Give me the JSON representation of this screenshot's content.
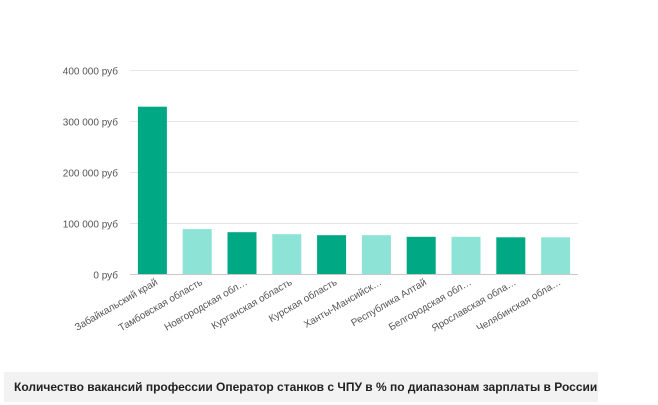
{
  "chart_data": {
    "type": "bar",
    "title": "",
    "xlabel": "",
    "ylabel": "",
    "ylim": [
      0,
      400000
    ],
    "y_ticks": [
      {
        "value": 0,
        "label": "0 руб"
      },
      {
        "value": 100000,
        "label": "100 000 руб"
      },
      {
        "value": 200000,
        "label": "200 000 руб"
      },
      {
        "value": 300000,
        "label": "300 000 руб"
      },
      {
        "value": 400000,
        "label": "400 000 руб"
      }
    ],
    "grid": true,
    "categories": [
      "Забайкальский край",
      "Тамбовская область",
      "Новгородская обл…",
      "Курганская область",
      "Курская область",
      "Ханты-Мансийск…",
      "Республика Алтай",
      "Белгородская обл…",
      "Ярославская обла…",
      "Челябинская обла…"
    ],
    "values": [
      328000,
      88000,
      82000,
      78000,
      76000,
      76000,
      73000,
      73000,
      72000,
      72000
    ],
    "colors": [
      "#00a884",
      "#8ce3d6",
      "#00a884",
      "#8ce3d6",
      "#00a884",
      "#8ce3d6",
      "#00a884",
      "#8ce3d6",
      "#00a884",
      "#8ce3d6"
    ]
  },
  "caption": "Количество вакансий профессии Оператор станков с ЧПУ в % по диапазонам зарплаты в России"
}
